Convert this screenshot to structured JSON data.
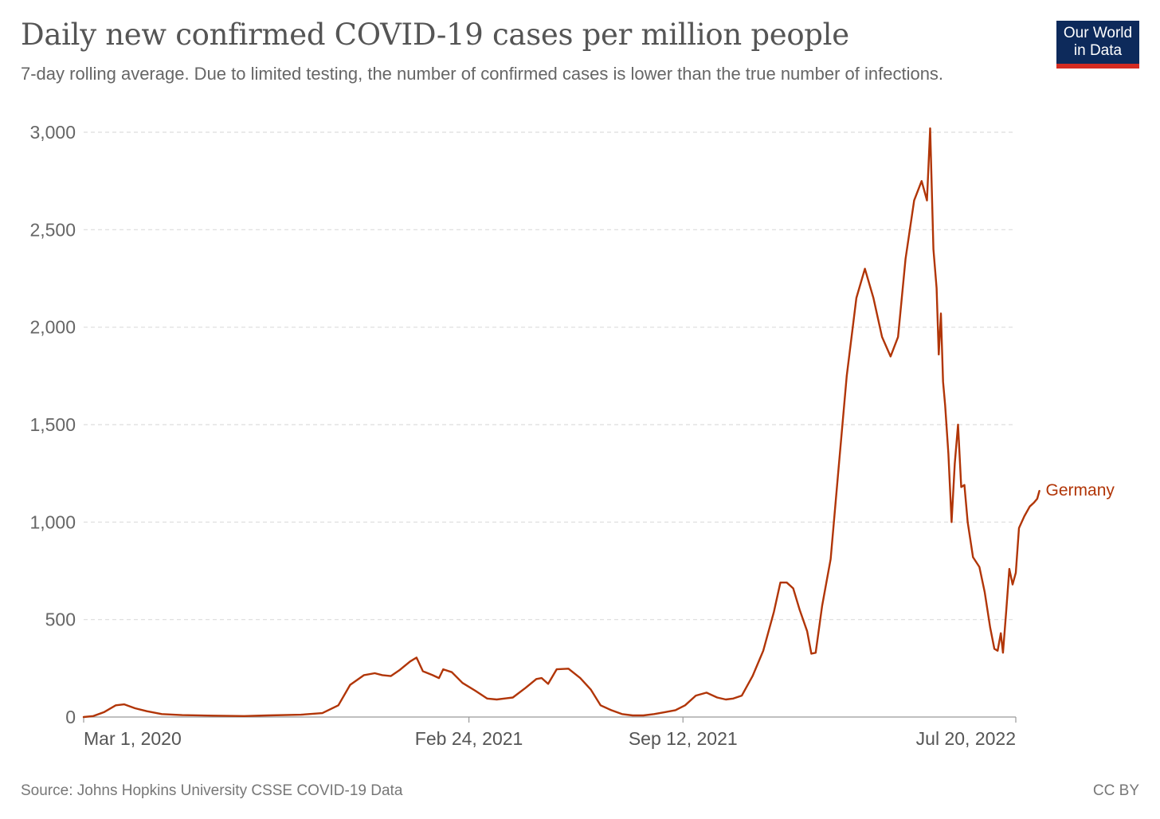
{
  "header": {
    "title": "Daily new confirmed COVID-19 cases per million people",
    "subtitle": "7-day rolling average. Due to limited testing, the number of confirmed cases is lower than the true number of infections.",
    "logo_line1": "Our World",
    "logo_line2": "in Data"
  },
  "footer": {
    "source": "Source: Johns Hopkins University CSSE COVID-19 Data",
    "license": "CC BY"
  },
  "colors": {
    "series": "#b13507",
    "grid": "#dddddd",
    "logo_bg": "#0d2a5b",
    "logo_accent": "#d42b21"
  },
  "chart_data": {
    "type": "line",
    "title": "Daily new confirmed COVID-19 cases per million people",
    "subtitle": "7-day rolling average. Due to limited testing, the number of confirmed cases is lower than the true number of infections.",
    "xlabel": "",
    "ylabel": "",
    "x_type": "date",
    "xlim": [
      "2020-03-01",
      "2022-07-20"
    ],
    "ylim": [
      0,
      3000
    ],
    "y_ticks": [
      0,
      500,
      1000,
      1500,
      2000,
      2500,
      3000
    ],
    "y_tick_labels": [
      "0",
      "500",
      "1,000",
      "1,500",
      "2,000",
      "2,500",
      "3,000"
    ],
    "x_ticks": [
      "2020-03-01",
      "2021-02-24",
      "2021-09-12",
      "2022-07-20"
    ],
    "x_tick_labels": [
      "Mar 1, 2020",
      "Feb 24, 2021",
      "Sep 12, 2021",
      "Jul 20, 2022"
    ],
    "grid": "horizontal dashed",
    "legend": "inline label at line end",
    "series": [
      {
        "name": "Germany",
        "color": "#b13507",
        "points": [
          [
            "2020-03-01",
            0
          ],
          [
            "2020-03-10",
            5
          ],
          [
            "2020-03-20",
            25
          ],
          [
            "2020-03-31",
            60
          ],
          [
            "2020-04-08",
            65
          ],
          [
            "2020-04-18",
            45
          ],
          [
            "2020-04-29",
            30
          ],
          [
            "2020-05-13",
            15
          ],
          [
            "2020-06-01",
            10
          ],
          [
            "2020-06-30",
            7
          ],
          [
            "2020-07-29",
            5
          ],
          [
            "2020-08-20",
            8
          ],
          [
            "2020-09-20",
            12
          ],
          [
            "2020-10-10",
            20
          ],
          [
            "2020-10-25",
            60
          ],
          [
            "2020-11-05",
            165
          ],
          [
            "2020-11-18",
            215
          ],
          [
            "2020-11-28",
            225
          ],
          [
            "2020-12-05",
            215
          ],
          [
            "2020-12-13",
            210
          ],
          [
            "2020-12-21",
            240
          ],
          [
            "2020-12-31",
            285
          ],
          [
            "2021-01-06",
            305
          ],
          [
            "2021-01-12",
            235
          ],
          [
            "2021-01-21",
            215
          ],
          [
            "2021-01-27",
            200
          ],
          [
            "2021-01-31",
            245
          ],
          [
            "2021-02-08",
            230
          ],
          [
            "2021-02-18",
            175
          ],
          [
            "2021-03-02",
            135
          ],
          [
            "2021-03-13",
            95
          ],
          [
            "2021-03-22",
            90
          ],
          [
            "2021-04-06",
            100
          ],
          [
            "2021-04-18",
            150
          ],
          [
            "2021-04-28",
            195
          ],
          [
            "2021-05-03",
            200
          ],
          [
            "2021-05-09",
            170
          ],
          [
            "2021-05-17",
            245
          ],
          [
            "2021-05-28",
            248
          ],
          [
            "2021-06-08",
            200
          ],
          [
            "2021-06-18",
            140
          ],
          [
            "2021-06-27",
            60
          ],
          [
            "2021-07-07",
            35
          ],
          [
            "2021-07-17",
            15
          ],
          [
            "2021-07-27",
            8
          ],
          [
            "2021-08-06",
            8
          ],
          [
            "2021-08-16",
            15
          ],
          [
            "2021-08-26",
            25
          ],
          [
            "2021-09-05",
            35
          ],
          [
            "2021-09-14",
            60
          ],
          [
            "2021-09-24",
            110
          ],
          [
            "2021-10-04",
            125
          ],
          [
            "2021-10-14",
            100
          ],
          [
            "2021-10-22",
            90
          ],
          [
            "2021-10-29",
            95
          ],
          [
            "2021-11-06",
            110
          ],
          [
            "2021-11-16",
            210
          ],
          [
            "2021-11-26",
            340
          ],
          [
            "2021-12-06",
            540
          ],
          [
            "2021-12-12",
            690
          ],
          [
            "2021-12-18",
            690
          ],
          [
            "2021-12-24",
            660
          ],
          [
            "2021-12-30",
            550
          ],
          [
            "2022-01-06",
            440
          ],
          [
            "2022-01-10",
            325
          ],
          [
            "2022-01-14",
            330
          ],
          [
            "2022-01-20",
            570
          ],
          [
            "2022-01-28",
            810
          ],
          [
            "2022-02-04",
            1250
          ],
          [
            "2022-02-12",
            1750
          ],
          [
            "2022-02-21",
            2150
          ],
          [
            "2022-03-01",
            2300
          ],
          [
            "2022-03-09",
            2150
          ],
          [
            "2022-03-17",
            1950
          ],
          [
            "2022-03-25",
            1850
          ],
          [
            "2022-04-01",
            1950
          ],
          [
            "2022-04-08",
            2350
          ],
          [
            "2022-04-16",
            2650
          ],
          [
            "2022-04-23",
            2750
          ],
          [
            "2022-04-28",
            2650
          ],
          [
            "2022-05-01",
            3020
          ],
          [
            "2022-05-04",
            2400
          ],
          [
            "2022-05-07",
            2200
          ],
          [
            "2022-05-09",
            1860
          ],
          [
            "2022-05-11",
            2070
          ],
          [
            "2022-05-13",
            1720
          ],
          [
            "2022-05-15",
            1600
          ],
          [
            "2022-05-18",
            1350
          ],
          [
            "2022-05-21",
            1000
          ],
          [
            "2022-05-24",
            1300
          ],
          [
            "2022-05-27",
            1500
          ],
          [
            "2022-05-30",
            1180
          ],
          [
            "2022-06-02",
            1190
          ],
          [
            "2022-06-05",
            1000
          ],
          [
            "2022-06-10",
            820
          ],
          [
            "2022-06-16",
            770
          ],
          [
            "2022-06-21",
            640
          ],
          [
            "2022-06-26",
            460
          ],
          [
            "2022-06-30",
            350
          ],
          [
            "2022-07-03",
            340
          ],
          [
            "2022-07-06",
            430
          ],
          [
            "2022-07-08",
            330
          ],
          [
            "2022-07-11",
            540
          ],
          [
            "2022-07-14",
            760
          ],
          [
            "2022-07-17",
            680
          ],
          [
            "2022-07-20",
            740
          ],
          [
            "2022-07-23",
            970
          ],
          [
            "2022-07-28",
            1030
          ],
          [
            "2022-08-02",
            1080
          ],
          [
            "2022-08-06",
            1100
          ],
          [
            "2022-08-09",
            1120
          ],
          [
            "2022-08-11",
            1160
          ]
        ]
      }
    ]
  }
}
